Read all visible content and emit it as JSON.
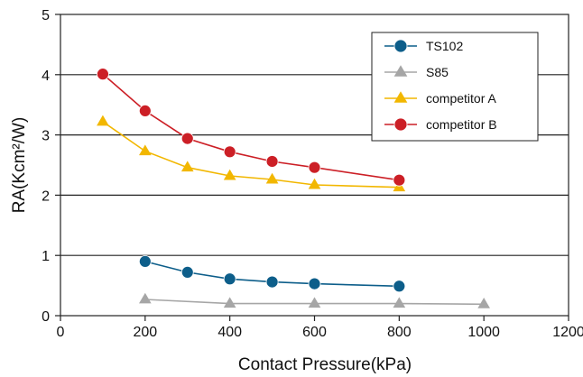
{
  "chart_data": {
    "type": "line",
    "xlabel": "Contact Pressure(kPa)",
    "ylabel": "RA(Kcm²/W)",
    "xlim": [
      0,
      1200
    ],
    "ylim": [
      0,
      5
    ],
    "xticks": [
      "0",
      "200",
      "400",
      "600",
      "800",
      "1000",
      "1200"
    ],
    "yticks": [
      "0",
      "1",
      "2",
      "3",
      "4",
      "5"
    ],
    "grid": "horizontal",
    "legend_position": "top-right",
    "series": [
      {
        "name": "TS102",
        "color": "#0d5e8a",
        "marker": "circle",
        "points": [
          [
            200,
            0.9
          ],
          [
            300,
            0.72
          ],
          [
            400,
            0.61
          ],
          [
            500,
            0.56
          ],
          [
            600,
            0.53
          ],
          [
            800,
            0.49
          ]
        ]
      },
      {
        "name": "S85",
        "color": "#a6a6a6",
        "marker": "triangle",
        "points": [
          [
            200,
            0.27
          ],
          [
            400,
            0.2
          ],
          [
            600,
            0.2
          ],
          [
            800,
            0.2
          ],
          [
            1000,
            0.19
          ]
        ]
      },
      {
        "name": "competitor A",
        "color": "#f2b700",
        "marker": "triangle",
        "points": [
          [
            100,
            3.22
          ],
          [
            200,
            2.73
          ],
          [
            300,
            2.46
          ],
          [
            400,
            2.32
          ],
          [
            500,
            2.26
          ],
          [
            600,
            2.17
          ],
          [
            800,
            2.13
          ]
        ]
      },
      {
        "name": "competitor B",
        "color": "#cc1f26",
        "marker": "circle",
        "points": [
          [
            100,
            4.01
          ],
          [
            200,
            3.4
          ],
          [
            300,
            2.94
          ],
          [
            400,
            2.72
          ],
          [
            500,
            2.56
          ],
          [
            600,
            2.46
          ],
          [
            800,
            2.25
          ]
        ]
      }
    ]
  }
}
